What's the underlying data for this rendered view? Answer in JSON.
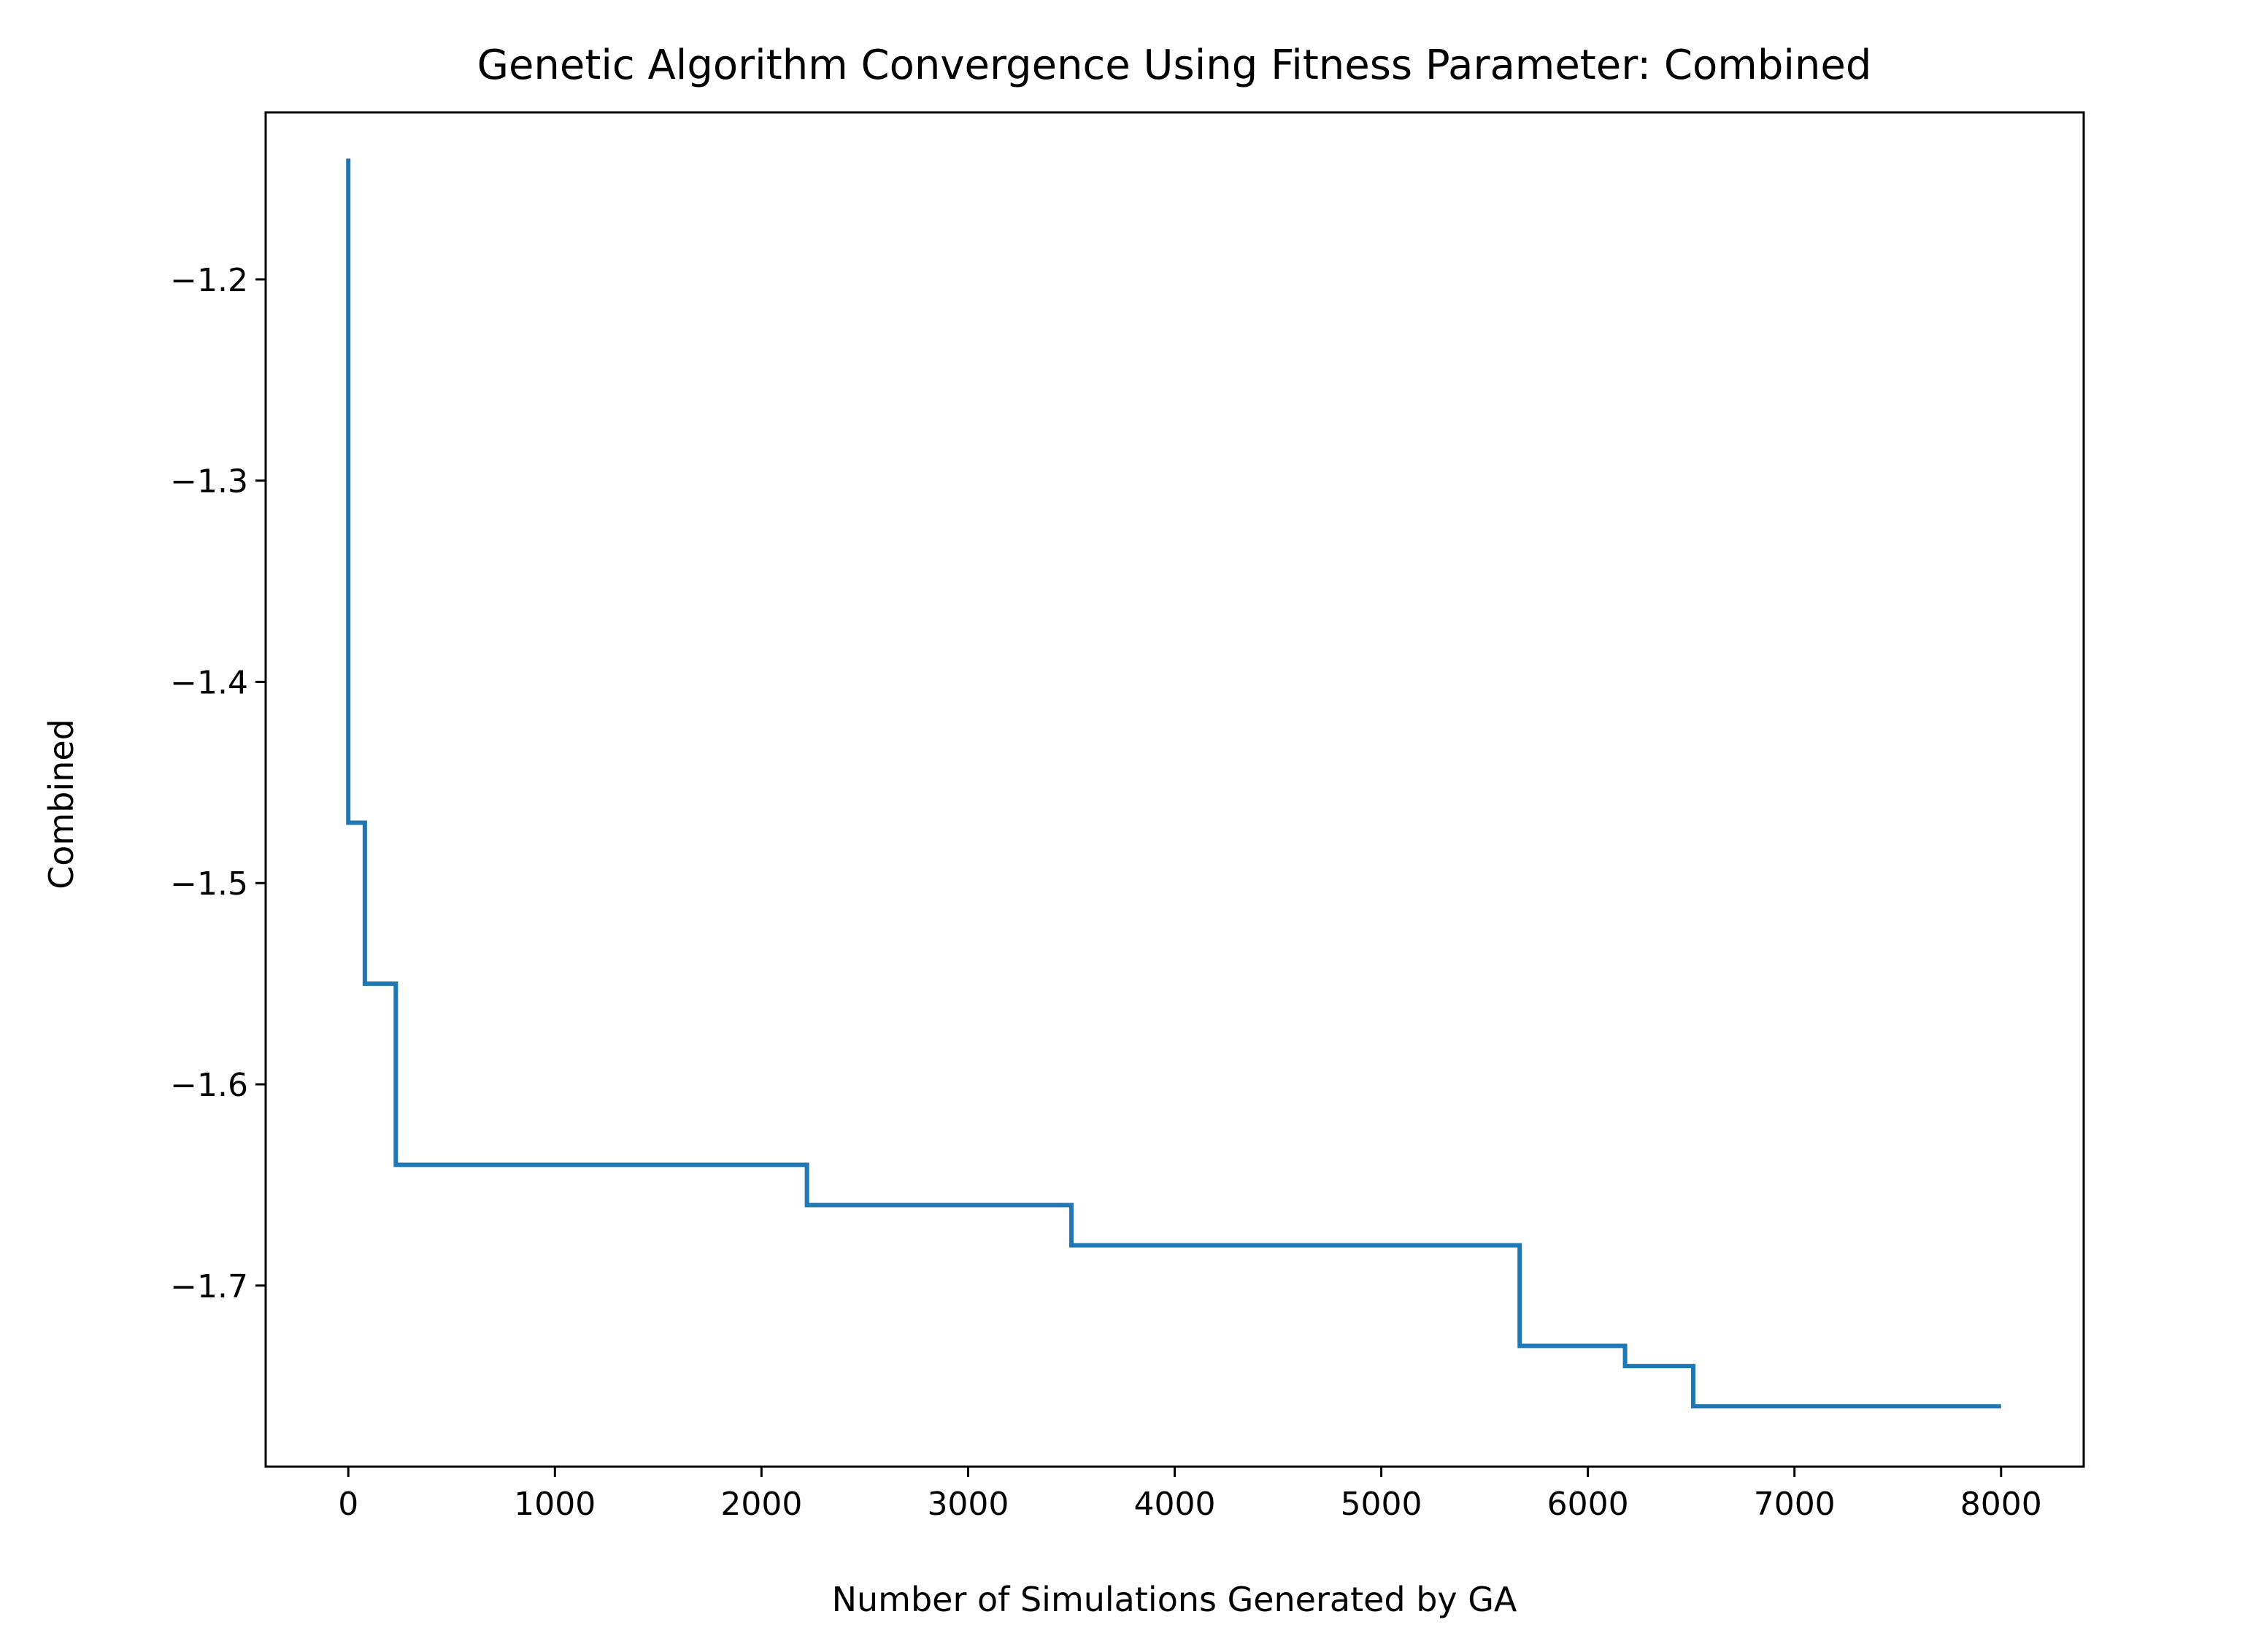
{
  "chart_data": {
    "type": "line",
    "step": "post",
    "title": "Genetic Algorithm Convergence Using Fitness Parameter: Combined",
    "xlabel": "Number of Simulations Generated by GA",
    "ylabel": "Combined",
    "xlim": [
      -400,
      8400
    ],
    "ylim": [
      -1.79,
      -1.117
    ],
    "x_ticks": [
      0,
      1000,
      2000,
      3000,
      4000,
      5000,
      6000,
      7000,
      8000
    ],
    "x_tick_labels": [
      "0",
      "1000",
      "2000",
      "3000",
      "4000",
      "5000",
      "6000",
      "7000",
      "8000"
    ],
    "y_ticks": [
      -1.2,
      -1.3,
      -1.4,
      -1.5,
      -1.6,
      -1.7
    ],
    "y_tick_labels": [
      "−1.2",
      "−1.3",
      "−1.4",
      "−1.5",
      "−1.6",
      "−1.7"
    ],
    "grid": false,
    "series": [
      {
        "color": "#1f77b4",
        "x": [
          0,
          0,
          80,
          230,
          2220,
          3500,
          5670,
          6180,
          6510,
          8000
        ],
        "y": [
          -1.14,
          -1.47,
          -1.55,
          -1.64,
          -1.66,
          -1.68,
          -1.73,
          -1.74,
          -1.76,
          -1.76
        ]
      }
    ]
  }
}
